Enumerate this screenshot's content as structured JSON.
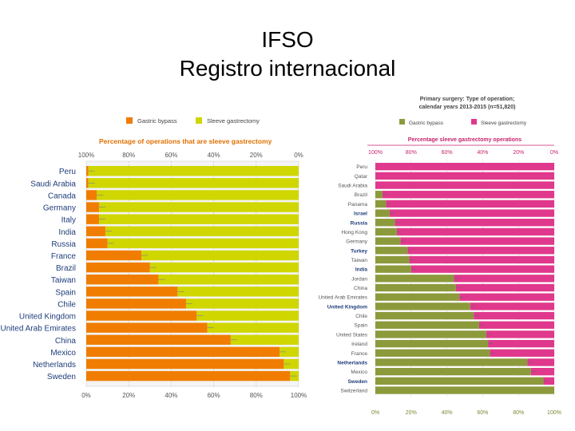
{
  "slide": {
    "title_line1": "IFSO",
    "title_line2": "Registro internacional"
  },
  "colors": {
    "left_gastric": "#f07d00",
    "left_sleeve": "#cfd600",
    "left_header": "#e07000",
    "right_gastric": "#8c9a3c",
    "right_sleeve": "#e0388c",
    "right_header": "#c8236e",
    "right_title": "#444444"
  },
  "chart_data": [
    {
      "type": "bar",
      "title": "Percentage of operations that are sleeve gastrectomy",
      "legend": [
        "Gastric bypass",
        "Sleeve gastrectomy"
      ],
      "legend_position": "top",
      "top_axis_ticks": [
        "100%",
        "80%",
        "60%",
        "40%",
        "20%",
        "0%"
      ],
      "bottom_axis_ticks": [
        "0%",
        "20%",
        "40%",
        "60%",
        "80%",
        "100%"
      ],
      "xlim": [
        0,
        100
      ],
      "categories": [
        "Peru",
        "Saudi Arabia",
        "Canada",
        "Germany",
        "Italy",
        "India",
        "Russia",
        "France",
        "Brazil",
        "Taiwan",
        "Spain",
        "Chile",
        "United Kingdom",
        "United Arab Emirates",
        "China",
        "Mexico",
        "Netherlands",
        "Sweden"
      ],
      "series": [
        {
          "name": "Gastric bypass",
          "values": [
            1,
            1,
            5,
            6,
            6,
            9,
            10,
            26,
            30,
            34,
            43,
            47,
            52,
            57,
            68,
            91,
            93,
            96
          ]
        },
        {
          "name": "Sleeve gastrectomy",
          "values": [
            99,
            99,
            95,
            94,
            94,
            91,
            90,
            74,
            70,
            66,
            57,
            53,
            48,
            43,
            32,
            9,
            7,
            4
          ]
        }
      ]
    },
    {
      "type": "bar",
      "title": "Primary surgery: Type of operation; calendar years 2013-2015 (n=51,820)",
      "subtitle": "Percentage sleeve gastrectomy operations",
      "legend": [
        "Gastric bypass",
        "Sleeve gastrectomy"
      ],
      "legend_position": "top",
      "top_axis_ticks": [
        "100%",
        "80%",
        "60%",
        "40%",
        "20%",
        "0%"
      ],
      "bottom_axis_ticks": [
        "0%",
        "20%",
        "40%",
        "60%",
        "80%",
        "100%"
      ],
      "xlim": [
        0,
        100
      ],
      "categories": [
        "Peru",
        "Qatar",
        "Saudi Arabia",
        "Brazil",
        "Panama",
        "Israel",
        "Russia",
        "Hong Kong",
        "Germany",
        "Turkey",
        "Taiwan",
        "India",
        "Jordan",
        "China",
        "United Arab Emirates",
        "United Kingdom",
        "Chile",
        "Spain",
        "United States",
        "Ireland",
        "France",
        "Netherlands",
        "Mexico",
        "Sweden",
        "Switzerland"
      ],
      "bold_categories": [
        "Israel",
        "Russia",
        "Turkey",
        "India",
        "United Kingdom",
        "Netherlands",
        "Sweden"
      ],
      "series": [
        {
          "name": "Gastric bypass",
          "values": [
            0,
            0,
            0,
            4,
            6,
            8,
            11,
            12,
            14,
            18,
            19,
            20,
            44,
            45,
            47,
            53,
            55,
            58,
            62,
            63,
            64,
            85,
            87,
            94,
            100
          ]
        },
        {
          "name": "Sleeve gastrectomy",
          "values": [
            100,
            100,
            100,
            96,
            94,
            92,
            89,
            88,
            86,
            82,
            81,
            80,
            56,
            55,
            53,
            47,
            45,
            42,
            38,
            37,
            36,
            15,
            13,
            6,
            0
          ]
        }
      ]
    }
  ]
}
